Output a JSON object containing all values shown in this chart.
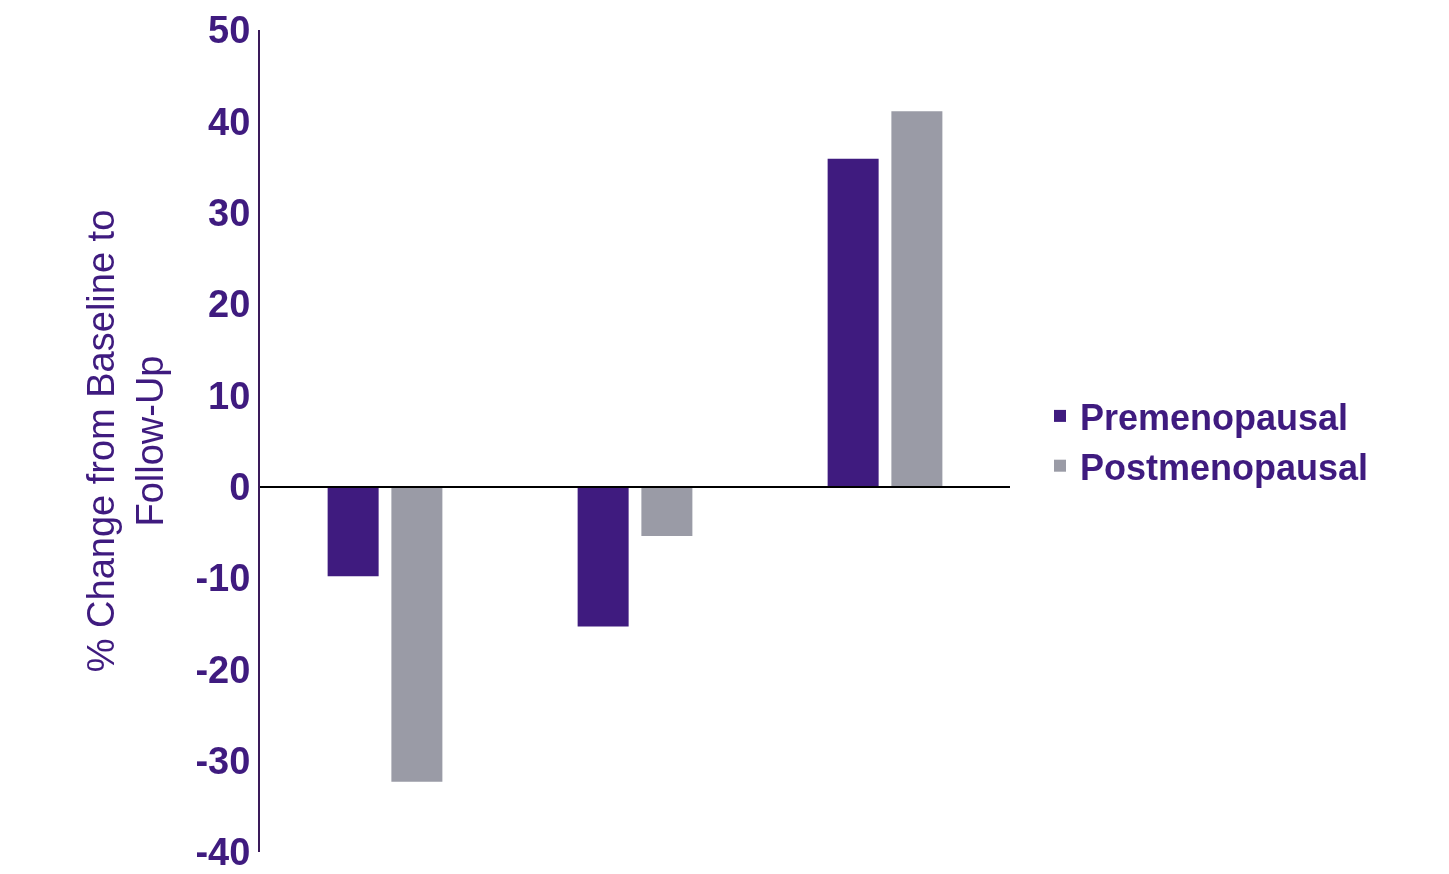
{
  "chart_data": {
    "type": "bar",
    "ylabel": "% Change from Baseline to Follow-Up",
    "categories": [
      null,
      null,
      null
    ],
    "series": [
      {
        "name": "Premenopausal",
        "color": "#3f1b7f",
        "values": [
          -9.8,
          -15.3,
          35.9
        ]
      },
      {
        "name": "Postmenopausal",
        "color": "#9a9ba6",
        "values": [
          -32.3,
          -5.4,
          41.1
        ]
      }
    ],
    "ylim": [
      -40,
      50
    ],
    "yticks": [
      -40,
      -30,
      -20,
      -10,
      0,
      10,
      20,
      30,
      40,
      50
    ],
    "legend": "right",
    "tick_labels": "y"
  }
}
